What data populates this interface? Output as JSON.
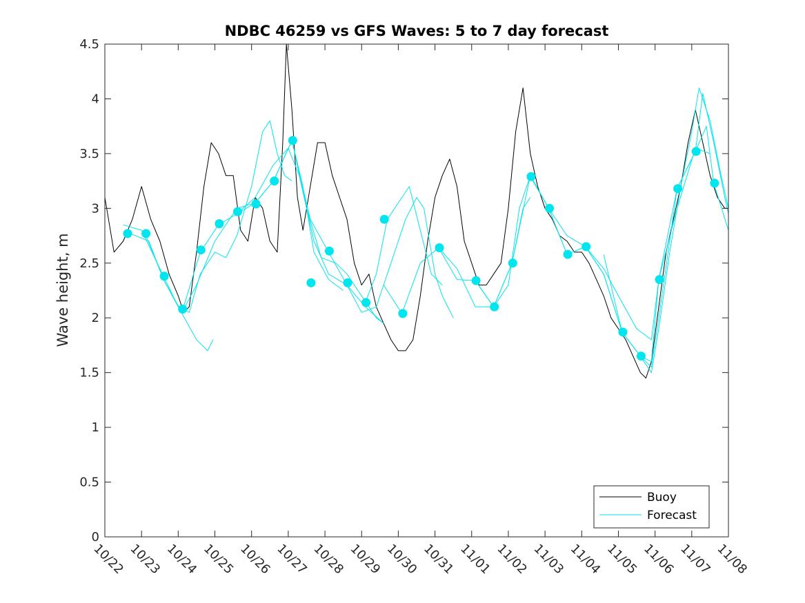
{
  "chart_data": {
    "type": "line",
    "title": "NDBC 46259 vs GFS Waves: 5 to 7 day forecast",
    "xlabel": "",
    "ylabel": "Wave height, m",
    "xlim": [
      0,
      17
    ],
    "ylim": [
      0,
      4.5
    ],
    "x_ticks": [
      "10/22",
      "10/23",
      "10/24",
      "10/25",
      "10/26",
      "10/27",
      "10/28",
      "10/29",
      "10/30",
      "10/31",
      "11/01",
      "11/02",
      "11/03",
      "11/04",
      "11/05",
      "11/06",
      "11/07",
      "11/08"
    ],
    "y_ticks": [
      "0",
      "0.5",
      "1",
      "1.5",
      "2",
      "2.5",
      "3",
      "3.5",
      "4",
      "4.5"
    ],
    "x_units": "days since 10/22 00:00",
    "legend": {
      "position": "bottom-right",
      "entries": [
        "Buoy",
        "Forecast"
      ]
    },
    "colors": {
      "buoy": "#000000",
      "forecast": "#00e5ee",
      "markers": "#00e5ee",
      "axes": "#262626"
    },
    "series": [
      {
        "name": "Buoy",
        "color": "#000000",
        "points": [
          [
            0,
            3.1
          ],
          [
            0.25,
            2.6
          ],
          [
            0.5,
            2.7
          ],
          [
            0.75,
            2.9
          ],
          [
            1,
            3.2
          ],
          [
            1.25,
            2.9
          ],
          [
            1.5,
            2.7
          ],
          [
            1.75,
            2.4
          ],
          [
            2,
            2.2
          ],
          [
            2.15,
            2.05
          ],
          [
            2.3,
            2.1
          ],
          [
            2.5,
            2.6
          ],
          [
            2.7,
            3.2
          ],
          [
            2.9,
            3.6
          ],
          [
            3.1,
            3.5
          ],
          [
            3.3,
            3.3
          ],
          [
            3.5,
            3.3
          ],
          [
            3.7,
            2.8
          ],
          [
            3.9,
            2.7
          ],
          [
            4.1,
            3.1
          ],
          [
            4.3,
            3.0
          ],
          [
            4.5,
            2.7
          ],
          [
            4.7,
            2.6
          ],
          [
            4.85,
            3.6
          ],
          [
            4.95,
            4.5
          ],
          [
            5.1,
            3.9
          ],
          [
            5.25,
            3.1
          ],
          [
            5.4,
            2.8
          ],
          [
            5.6,
            3.2
          ],
          [
            5.8,
            3.6
          ],
          [
            6.0,
            3.6
          ],
          [
            6.2,
            3.3
          ],
          [
            6.4,
            3.1
          ],
          [
            6.6,
            2.9
          ],
          [
            6.8,
            2.5
          ],
          [
            7.0,
            2.3
          ],
          [
            7.2,
            2.4
          ],
          [
            7.4,
            2.1
          ],
          [
            7.6,
            1.95
          ],
          [
            7.8,
            1.8
          ],
          [
            8.0,
            1.7
          ],
          [
            8.2,
            1.7
          ],
          [
            8.4,
            1.8
          ],
          [
            8.6,
            2.2
          ],
          [
            8.8,
            2.7
          ],
          [
            9.0,
            3.1
          ],
          [
            9.2,
            3.3
          ],
          [
            9.4,
            3.45
          ],
          [
            9.6,
            3.2
          ],
          [
            9.8,
            2.7
          ],
          [
            10.0,
            2.5
          ],
          [
            10.2,
            2.3
          ],
          [
            10.4,
            2.3
          ],
          [
            10.6,
            2.4
          ],
          [
            10.8,
            2.5
          ],
          [
            11.0,
            3.0
          ],
          [
            11.2,
            3.7
          ],
          [
            11.4,
            4.1
          ],
          [
            11.6,
            3.5
          ],
          [
            11.8,
            3.2
          ],
          [
            12.0,
            3.0
          ],
          [
            12.2,
            2.9
          ],
          [
            12.4,
            2.75
          ],
          [
            12.6,
            2.7
          ],
          [
            12.8,
            2.6
          ],
          [
            13.0,
            2.6
          ],
          [
            13.2,
            2.5
          ],
          [
            13.4,
            2.35
          ],
          [
            13.6,
            2.2
          ],
          [
            13.8,
            2.0
          ],
          [
            14.0,
            1.9
          ],
          [
            14.2,
            1.8
          ],
          [
            14.4,
            1.65
          ],
          [
            14.6,
            1.5
          ],
          [
            14.75,
            1.45
          ],
          [
            14.9,
            1.6
          ],
          [
            15.1,
            2.1
          ],
          [
            15.3,
            2.6
          ],
          [
            15.5,
            2.9
          ],
          [
            15.7,
            3.2
          ],
          [
            15.9,
            3.6
          ],
          [
            16.1,
            3.9
          ],
          [
            16.3,
            3.6
          ],
          [
            16.5,
            3.3
          ],
          [
            16.7,
            3.1
          ],
          [
            16.9,
            3.0
          ],
          [
            17.0,
            3.0
          ]
        ]
      },
      {
        "name": "Forecast 1",
        "color": "#00e5ee",
        "points": [
          [
            0.5,
            2.85
          ],
          [
            1.0,
            2.8
          ],
          [
            1.5,
            2.45
          ],
          [
            2.0,
            2.1
          ],
          [
            2.5,
            1.8
          ],
          [
            2.8,
            1.7
          ],
          [
            2.95,
            1.8
          ]
        ]
      },
      {
        "name": "Forecast 2",
        "color": "#00e5ee",
        "points": [
          [
            0.7,
            2.77
          ],
          [
            1.2,
            2.7
          ],
          [
            1.6,
            2.35
          ],
          [
            2.0,
            2.1
          ],
          [
            2.3,
            2.05
          ],
          [
            2.6,
            2.4
          ],
          [
            3.0,
            2.6
          ],
          [
            3.3,
            2.55
          ],
          [
            3.6,
            2.75
          ],
          [
            4.0,
            3.2
          ],
          [
            4.3,
            3.7
          ],
          [
            4.5,
            3.8
          ],
          [
            4.7,
            3.5
          ],
          [
            4.9,
            3.3
          ],
          [
            5.1,
            3.25
          ]
        ]
      },
      {
        "name": "Forecast 3",
        "color": "#00e5ee",
        "points": [
          [
            1.1,
            2.77
          ],
          [
            1.6,
            2.35
          ],
          [
            2.1,
            2.05
          ],
          [
            2.5,
            2.3
          ],
          [
            3.0,
            2.7
          ],
          [
            3.6,
            3.0
          ],
          [
            4.1,
            3.05
          ],
          [
            4.6,
            3.25
          ],
          [
            5.1,
            3.62
          ],
          [
            5.4,
            3.2
          ],
          [
            5.7,
            2.6
          ],
          [
            6.1,
            2.35
          ],
          [
            6.5,
            2.25
          ]
        ]
      },
      {
        "name": "Forecast 4",
        "color": "#00e5ee",
        "points": [
          [
            2.1,
            2.05
          ],
          [
            2.6,
            2.6
          ],
          [
            3.1,
            2.85
          ],
          [
            3.6,
            2.95
          ],
          [
            4.1,
            3.1
          ],
          [
            4.6,
            3.4
          ],
          [
            5.0,
            3.55
          ],
          [
            5.3,
            3.3
          ],
          [
            5.7,
            2.7
          ],
          [
            6.1,
            2.4
          ],
          [
            6.6,
            2.3
          ],
          [
            7.1,
            2.1
          ],
          [
            7.6,
            1.95
          ]
        ]
      },
      {
        "name": "Forecast 5",
        "color": "#00e5ee",
        "points": [
          [
            3.6,
            2.95
          ],
          [
            4.1,
            3.05
          ],
          [
            4.6,
            3.25
          ],
          [
            5.1,
            3.62
          ],
          [
            5.5,
            3.0
          ],
          [
            5.9,
            2.55
          ],
          [
            6.3,
            2.5
          ],
          [
            6.6,
            2.4
          ],
          [
            7.0,
            2.2
          ],
          [
            7.4,
            2.0
          ],
          [
            7.6,
            1.95
          ]
        ]
      },
      {
        "name": "Forecast 6",
        "color": "#00e5ee",
        "points": [
          [
            5.1,
            3.62
          ],
          [
            5.6,
            2.9
          ],
          [
            6.1,
            2.6
          ],
          [
            6.6,
            2.3
          ],
          [
            7.0,
            2.05
          ],
          [
            7.4,
            2.1
          ],
          [
            7.6,
            2.3
          ],
          [
            7.9,
            2.6
          ],
          [
            8.2,
            2.9
          ],
          [
            8.5,
            3.1
          ],
          [
            8.7,
            3.0
          ],
          [
            8.9,
            2.6
          ],
          [
            9.0,
            2.4
          ],
          [
            9.2,
            2.2
          ],
          [
            9.5,
            2.0
          ]
        ]
      },
      {
        "name": "Forecast 7",
        "color": "#00e5ee",
        "points": [
          [
            7.1,
            2.14
          ],
          [
            7.4,
            2.4
          ],
          [
            7.7,
            2.9
          ],
          [
            8.0,
            3.05
          ],
          [
            8.3,
            3.2
          ],
          [
            8.6,
            2.8
          ],
          [
            8.9,
            2.4
          ],
          [
            9.2,
            2.3
          ]
        ]
      },
      {
        "name": "Forecast 8",
        "color": "#00e5ee",
        "points": [
          [
            7.6,
            2.3
          ],
          [
            8.1,
            2.04
          ],
          [
            8.6,
            2.5
          ],
          [
            9.1,
            2.64
          ],
          [
            9.6,
            2.45
          ],
          [
            10.1,
            2.1
          ],
          [
            10.6,
            2.1
          ],
          [
            11.1,
            2.5
          ],
          [
            11.4,
            3.0
          ],
          [
            11.6,
            3.1
          ]
        ]
      },
      {
        "name": "Forecast 9",
        "color": "#00e5ee",
        "points": [
          [
            9.1,
            2.64
          ],
          [
            9.6,
            2.35
          ],
          [
            10.1,
            2.34
          ],
          [
            10.6,
            2.1
          ],
          [
            11.0,
            2.3
          ],
          [
            11.3,
            3.0
          ],
          [
            11.6,
            3.3
          ],
          [
            12.1,
            3.0
          ],
          [
            12.6,
            2.75
          ],
          [
            13.1,
            2.65
          ],
          [
            13.6,
            2.45
          ],
          [
            14.0,
            2.2
          ],
          [
            14.5,
            1.9
          ],
          [
            14.9,
            1.8
          ],
          [
            15.1,
            2.35
          ],
          [
            15.6,
            3.0
          ],
          [
            16.1,
            3.55
          ],
          [
            16.5,
            3.5
          ]
        ]
      },
      {
        "name": "Forecast 10",
        "color": "#00e5ee",
        "points": [
          [
            10.1,
            2.34
          ],
          [
            10.6,
            2.1
          ],
          [
            11.1,
            2.5
          ],
          [
            11.6,
            3.3
          ],
          [
            12.1,
            3.0
          ],
          [
            12.6,
            2.58
          ],
          [
            13.1,
            2.65
          ],
          [
            13.6,
            2.4
          ],
          [
            14.1,
            1.87
          ],
          [
            14.6,
            1.65
          ],
          [
            14.9,
            1.6
          ],
          [
            15.1,
            2.35
          ],
          [
            15.6,
            3.18
          ],
          [
            16.1,
            3.52
          ],
          [
            16.4,
            3.75
          ],
          [
            16.6,
            3.23
          ],
          [
            17.0,
            2.8
          ]
        ]
      },
      {
        "name": "Forecast 11",
        "color": "#00e5ee",
        "points": [
          [
            11.6,
            3.29
          ],
          [
            12.1,
            3.0
          ],
          [
            12.6,
            2.58
          ],
          [
            13.1,
            2.65
          ],
          [
            13.6,
            2.4
          ],
          [
            14.1,
            1.87
          ],
          [
            14.6,
            1.65
          ],
          [
            14.9,
            1.5
          ],
          [
            15.1,
            1.9
          ],
          [
            15.4,
            2.6
          ],
          [
            15.7,
            3.2
          ],
          [
            16.0,
            3.7
          ],
          [
            16.2,
            4.1
          ],
          [
            16.5,
            3.8
          ],
          [
            16.8,
            3.3
          ],
          [
            17.0,
            3.0
          ]
        ]
      },
      {
        "name": "Forecast 12",
        "color": "#00e5ee",
        "points": [
          [
            13.6,
            2.58
          ],
          [
            14.1,
            1.87
          ],
          [
            14.6,
            1.65
          ],
          [
            14.9,
            1.55
          ],
          [
            15.1,
            2.0
          ],
          [
            15.6,
            3.18
          ],
          [
            16.1,
            3.52
          ],
          [
            16.3,
            4.05
          ],
          [
            16.6,
            3.6
          ],
          [
            16.9,
            3.1
          ],
          [
            17.0,
            2.95
          ]
        ]
      }
    ],
    "markers": {
      "name": "Forecast verification points",
      "color": "#00e5ee",
      "points": [
        [
          0.62,
          2.77
        ],
        [
          1.12,
          2.77
        ],
        [
          1.62,
          2.38
        ],
        [
          2.12,
          2.08
        ],
        [
          2.62,
          2.62
        ],
        [
          3.12,
          2.86
        ],
        [
          3.62,
          2.97
        ],
        [
          4.12,
          3.04
        ],
        [
          4.62,
          3.25
        ],
        [
          5.12,
          3.62
        ],
        [
          5.62,
          2.32
        ],
        [
          6.12,
          2.61
        ],
        [
          6.62,
          2.32
        ],
        [
          7.12,
          2.14
        ],
        [
          7.62,
          2.9
        ],
        [
          8.12,
          2.04
        ],
        [
          9.12,
          2.64
        ],
        [
          10.12,
          2.34
        ],
        [
          10.62,
          2.1
        ],
        [
          11.12,
          2.5
        ],
        [
          11.62,
          3.29
        ],
        [
          12.12,
          3.0
        ],
        [
          12.62,
          2.58
        ],
        [
          13.12,
          2.65
        ],
        [
          14.12,
          1.87
        ],
        [
          14.62,
          1.65
        ],
        [
          15.12,
          2.35
        ],
        [
          15.62,
          3.18
        ],
        [
          16.12,
          3.52
        ],
        [
          16.62,
          3.23
        ]
      ]
    }
  }
}
